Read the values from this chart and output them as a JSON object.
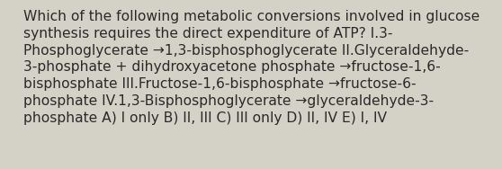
{
  "background_color": "#d4d1c6",
  "text_color": "#2a2a2a",
  "lines": [
    "Which of the following metabolic conversions involved in glucose",
    "synthesis requires the direct expenditure of ATP? I.3-",
    "Phosphoglycerate →1,3-bisphosphoglycerate II.Glyceraldehyde-",
    "3-phosphate + dihydroxyacetone phosphate →fructose-1,6-",
    "bisphosphate III.Fructose-1,6-bisphosphate →fructose-6-",
    "phosphate IV.1,3-Bisphosphoglycerate →glyceraldehyde-3-",
    "phosphate A) I only B) II, III C) III only D) II, IV E) I, IV"
  ],
  "font_size": 11.2,
  "fig_width": 5.58,
  "fig_height": 1.88,
  "dpi": 100
}
